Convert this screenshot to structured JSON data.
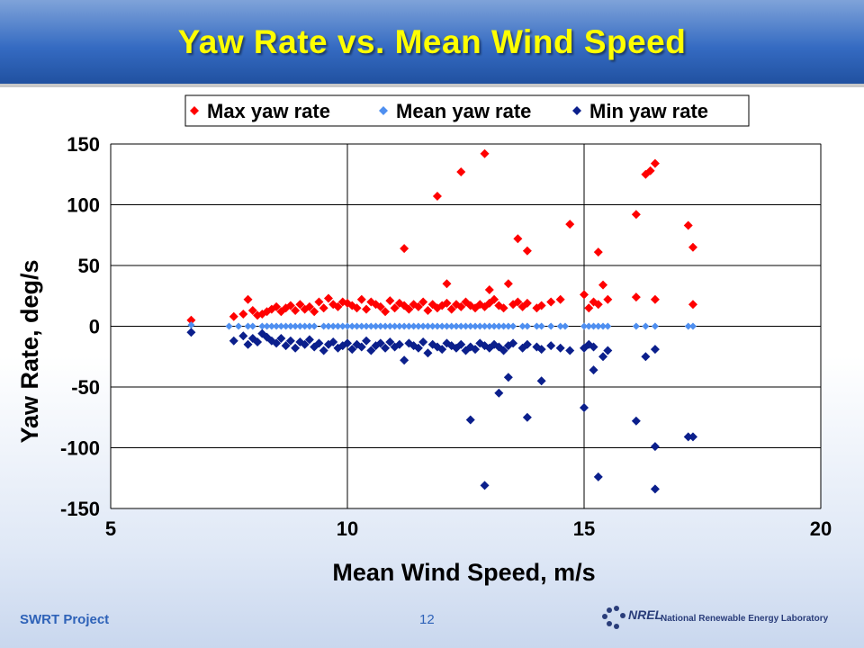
{
  "slide": {
    "title": "Yaw Rate vs. Mean Wind Speed",
    "footer_project": "SWRT Project",
    "page_number": "12",
    "logo_text": "National Renewable Energy Laboratory",
    "logo_mark": "NREL"
  },
  "colors": {
    "title_text": "#ffff00",
    "title_bar": "#356bc2",
    "max_series": "#ff0000",
    "mean_series": "#4f8ff0",
    "min_series": "#0b1f8c",
    "footer": "#2e62b8"
  },
  "chart_data": {
    "type": "scatter",
    "xlabel": "Mean Wind Speed, m/s",
    "ylabel": "Yaw Rate, deg/s",
    "xlim": [
      5,
      20
    ],
    "ylim": [
      -150,
      150
    ],
    "xticks": [
      5,
      10,
      15,
      20
    ],
    "yticks": [
      -150,
      -100,
      -50,
      0,
      50,
      100,
      150
    ],
    "grid": "major lines at every tick",
    "legend_position": "top",
    "series": [
      {
        "name": "Max yaw rate",
        "x": [
          6.7,
          7.6,
          7.8,
          7.9,
          8.0,
          8.1,
          8.2,
          8.3,
          8.4,
          8.5,
          8.6,
          8.7,
          8.8,
          8.9,
          9.0,
          9.1,
          9.2,
          9.3,
          9.4,
          9.5,
          9.6,
          9.7,
          9.8,
          9.9,
          10.0,
          10.1,
          10.2,
          10.3,
          10.4,
          10.5,
          10.6,
          10.7,
          10.8,
          10.9,
          11.0,
          11.1,
          11.2,
          11.3,
          11.4,
          11.5,
          11.6,
          11.7,
          11.8,
          11.9,
          12.0,
          12.1,
          12.2,
          12.3,
          12.4,
          12.5,
          12.6,
          12.7,
          12.8,
          12.9,
          13.0,
          13.1,
          13.2,
          13.3,
          13.4,
          13.5,
          13.6,
          13.7,
          13.8,
          14.0,
          14.1,
          14.3,
          14.5,
          15.0,
          15.1,
          15.2,
          15.3,
          15.5,
          16.1,
          16.5,
          17.3,
          11.2,
          11.9,
          12.4,
          12.9,
          13.6,
          13.8,
          14.7,
          15.3,
          15.4,
          16.1,
          16.3,
          16.4,
          16.5,
          17.2,
          17.3,
          12.1,
          13.0
        ],
        "y": [
          5,
          8,
          10,
          22,
          13,
          9,
          10,
          12,
          14,
          16,
          12,
          15,
          17,
          13,
          18,
          14,
          16,
          12,
          20,
          15,
          23,
          18,
          16,
          20,
          19,
          17,
          15,
          22,
          14,
          20,
          18,
          16,
          12,
          21,
          15,
          19,
          17,
          14,
          18,
          16,
          20,
          13,
          18,
          15,
          17,
          19,
          14,
          18,
          16,
          20,
          17,
          15,
          18,
          16,
          19,
          22,
          17,
          15,
          35,
          18,
          20,
          16,
          19,
          15,
          17,
          20,
          22,
          26,
          15,
          20,
          18,
          22,
          24,
          22,
          18,
          64,
          107,
          127,
          142,
          72,
          62,
          84,
          61,
          34,
          92,
          125,
          128,
          134,
          83,
          65,
          35,
          30
        ]
      },
      {
        "name": "Mean yaw rate",
        "x": [
          6.7,
          7.5,
          7.7,
          7.9,
          8.0,
          8.2,
          8.3,
          8.4,
          8.5,
          8.6,
          8.7,
          8.8,
          8.9,
          9.0,
          9.1,
          9.2,
          9.3,
          9.5,
          9.6,
          9.7,
          9.8,
          9.9,
          10.0,
          10.1,
          10.2,
          10.3,
          10.4,
          10.5,
          10.6,
          10.7,
          10.8,
          10.9,
          11.0,
          11.1,
          11.2,
          11.3,
          11.4,
          11.5,
          11.6,
          11.7,
          11.8,
          11.9,
          12.0,
          12.1,
          12.2,
          12.3,
          12.4,
          12.5,
          12.6,
          12.7,
          12.8,
          12.9,
          13.0,
          13.1,
          13.2,
          13.3,
          13.4,
          13.5,
          13.7,
          13.8,
          14.0,
          14.1,
          14.3,
          14.5,
          14.6,
          15.0,
          15.1,
          15.2,
          15.3,
          15.4,
          15.5,
          16.1,
          16.3,
          16.5,
          17.2,
          17.3
        ],
        "y": [
          1,
          0,
          0,
          0,
          0,
          0,
          0,
          0,
          0,
          0,
          0,
          0,
          0,
          0,
          0,
          0,
          0,
          0,
          0,
          0,
          0,
          0,
          0,
          0,
          0,
          0,
          0,
          0,
          0,
          0,
          0,
          0,
          0,
          0,
          0,
          0,
          0,
          0,
          0,
          0,
          0,
          0,
          0,
          0,
          0,
          0,
          0,
          0,
          0,
          0,
          0,
          0,
          0,
          0,
          0,
          0,
          0,
          0,
          0,
          0,
          0,
          0,
          0,
          0,
          0,
          0,
          0,
          0,
          0,
          0,
          0,
          0,
          0,
          0,
          0,
          0
        ]
      },
      {
        "name": "Min yaw rate",
        "x": [
          6.7,
          7.6,
          7.8,
          7.9,
          8.0,
          8.1,
          8.2,
          8.3,
          8.4,
          8.5,
          8.6,
          8.7,
          8.8,
          8.9,
          9.0,
          9.1,
          9.2,
          9.3,
          9.4,
          9.5,
          9.6,
          9.7,
          9.8,
          9.9,
          10.0,
          10.1,
          10.2,
          10.3,
          10.4,
          10.5,
          10.6,
          10.7,
          10.8,
          10.9,
          11.0,
          11.1,
          11.2,
          11.3,
          11.4,
          11.5,
          11.6,
          11.7,
          11.8,
          11.9,
          12.0,
          12.1,
          12.2,
          12.3,
          12.4,
          12.5,
          12.6,
          12.7,
          12.8,
          12.9,
          13.0,
          13.1,
          13.2,
          13.3,
          13.4,
          13.5,
          13.7,
          13.8,
          14.0,
          14.1,
          14.3,
          14.5,
          14.7,
          15.0,
          15.1,
          15.2,
          15.4,
          15.5,
          16.5,
          12.6,
          13.2,
          13.4,
          13.8,
          14.1,
          15.0,
          15.2,
          16.1,
          16.3,
          16.5,
          17.2,
          17.3,
          12.9,
          15.3,
          16.5
        ],
        "y": [
          -5,
          -12,
          -8,
          -15,
          -10,
          -13,
          -6,
          -9,
          -12,
          -14,
          -10,
          -16,
          -12,
          -18,
          -13,
          -15,
          -11,
          -17,
          -14,
          -20,
          -15,
          -13,
          -18,
          -16,
          -14,
          -19,
          -15,
          -17,
          -12,
          -20,
          -16,
          -14,
          -18,
          -13,
          -17,
          -15,
          -28,
          -14,
          -16,
          -18,
          -13,
          -22,
          -15,
          -17,
          -19,
          -14,
          -16,
          -18,
          -15,
          -20,
          -17,
          -19,
          -14,
          -16,
          -18,
          -15,
          -17,
          -20,
          -16,
          -14,
          -18,
          -15,
          -17,
          -19,
          -16,
          -18,
          -20,
          -18,
          -15,
          -17,
          -25,
          -20,
          -19,
          -77,
          -55,
          -42,
          -75,
          -45,
          -67,
          -36,
          -78,
          -25,
          -99,
          -91,
          -91,
          -131,
          -124,
          -134
        ]
      }
    ]
  }
}
